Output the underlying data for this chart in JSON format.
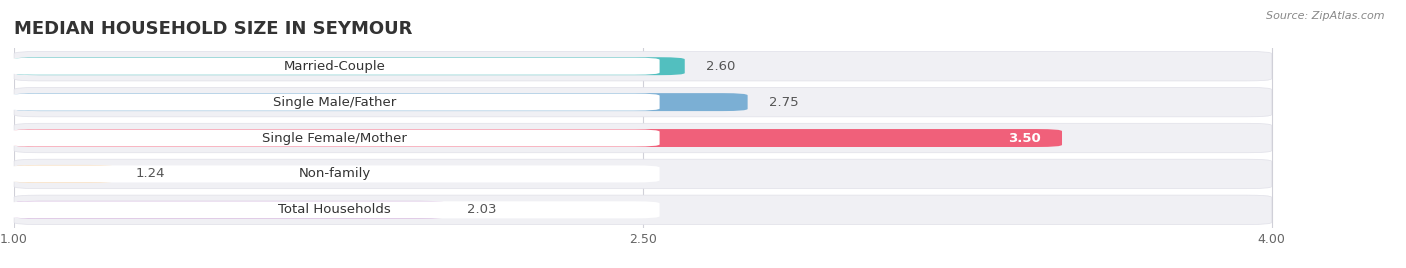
{
  "title": "MEDIAN HOUSEHOLD SIZE IN SEYMOUR",
  "source": "Source: ZipAtlas.com",
  "categories": [
    "Married-Couple",
    "Single Male/Father",
    "Single Female/Mother",
    "Non-family",
    "Total Households"
  ],
  "values": [
    2.6,
    2.75,
    3.5,
    1.24,
    2.03
  ],
  "bar_colors": [
    "#52BFBF",
    "#7BAFD4",
    "#F0607A",
    "#F5CFA0",
    "#C8A0D4"
  ],
  "row_bg_color": "#F0F0F4",
  "xlim": [
    1.0,
    4.0
  ],
  "xticks": [
    1.0,
    2.5,
    4.0
  ],
  "title_fontsize": 13,
  "label_fontsize": 9.5,
  "value_fontsize": 9.5,
  "background_color": "#FFFFFF",
  "value_inside_color": "#FFFFFF",
  "value_outside_color": "#555555"
}
